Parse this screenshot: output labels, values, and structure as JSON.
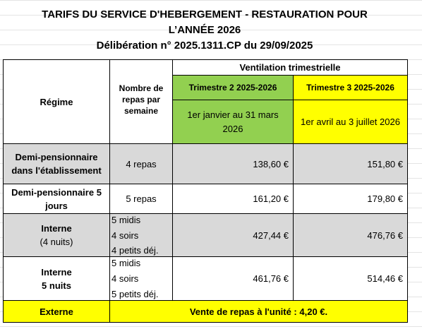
{
  "header": {
    "title_line1": "TARIFS DU SERVICE D'HEBERGEMENT - RESTAURATION  POUR",
    "title_line2": "L’ANNÉE 2026",
    "deliberation": "Délibération n° 2025.1311.CP du 29/09/2025"
  },
  "table": {
    "columns": {
      "regime": "Régime",
      "meals": "Nombre de repas par semaine",
      "ventilation": "Ventilation trimestrielle",
      "quarters": [
        {
          "name": "Trimestre 2 2025-2026",
          "period": "1er janvier au  31 mars 2026"
        },
        {
          "name": "Trimestre 3 2025-2026",
          "period": "1er avril au 3 juillet 2026"
        }
      ]
    },
    "rows": [
      {
        "regime": [
          "Demi-pensionnaire",
          "dans l'établissement"
        ],
        "meals": [
          "4 repas"
        ],
        "prices": [
          "138,60 €",
          "151,80 €"
        ]
      },
      {
        "regime": [
          "Demi-pensionnaire 5",
          "jours"
        ],
        "meals": [
          "5 repas"
        ],
        "prices": [
          "161,20 €",
          "179,80 €"
        ]
      },
      {
        "regime": [
          "Interne",
          "(4 nuits)"
        ],
        "meals": [
          "5 midis",
          "4 soirs",
          "4 petits déj."
        ],
        "prices": [
          "427,44 €",
          "476,76 €"
        ]
      },
      {
        "regime": [
          "Interne",
          "5 nuits"
        ],
        "meals": [
          "5 midis",
          "4 soirs",
          "5 petits déj."
        ],
        "prices": [
          "461,76 €",
          "514,46 €"
        ]
      }
    ],
    "footer": {
      "label": "Externe",
      "text": "Vente de repas à l'unité : 4,20 €."
    }
  }
}
